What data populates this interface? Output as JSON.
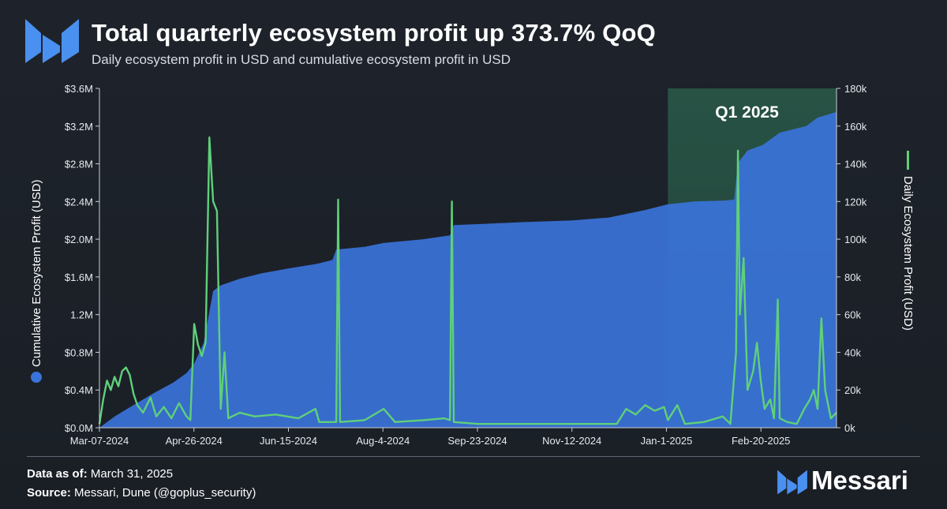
{
  "header": {
    "title": "Total quarterly ecosystem profit up 373.7% QoQ",
    "subtitle": "Daily ecosystem profit in USD and cumulative ecosystem profit in USD"
  },
  "footer": {
    "data_as_of_label": "Data as of:",
    "data_as_of_value": "March 31, 2025",
    "source_label": "Source:",
    "source_value": "Messari, Dune (@goplus_security)",
    "brand": "Messari"
  },
  "colors": {
    "background": "#1c2128",
    "cumulative_area": "#3a73d9",
    "daily_line": "#5fd07a",
    "highlight": "#2f7a5a",
    "brand_blue": "#4a90f0"
  },
  "chart_data": {
    "type": "area",
    "x_ticks": [
      "Mar-07-2024",
      "Apr-26-2024",
      "Jun-15-2024",
      "Aug-4-2024",
      "Sep-23-2024",
      "Nov-12-2024",
      "Jan-1-2025",
      "Feb-20-2025"
    ],
    "x_range": [
      "2024-03-07",
      "2025-03-31"
    ],
    "y_left": {
      "label": "Cumulative Ecosystem Profit (USD)",
      "ticks": [
        "$0.0M",
        "$0.4M",
        "$0.8M",
        "1.2M",
        "$1.6M",
        "$2.0M",
        "$2.4M",
        "$2.8M",
        "$3.2M",
        "$3.6M"
      ],
      "range": [
        0,
        3600000
      ]
    },
    "y_right": {
      "label": "Daily Ecosystem Profit (USD)",
      "ticks": [
        "0k",
        "20k",
        "40k",
        "60k",
        "80k",
        "100k",
        "120k",
        "140k",
        "160k",
        "180k"
      ],
      "range": [
        0,
        180000
      ]
    },
    "highlight": {
      "label": "Q1 2025",
      "start": "2025-01-01",
      "end": "2025-03-31"
    },
    "legend_placement": "beside axis titles",
    "grid": false,
    "series": [
      {
        "name": "Cumulative Ecosystem Profit (USD)",
        "axis": "left",
        "kind": "area",
        "points": [
          [
            "2024-03-07",
            0
          ],
          [
            "2024-03-15",
            120000
          ],
          [
            "2024-03-25",
            240000
          ],
          [
            "2024-04-05",
            370000
          ],
          [
            "2024-04-15",
            480000
          ],
          [
            "2024-04-22",
            580000
          ],
          [
            "2024-04-26",
            680000
          ],
          [
            "2024-05-01",
            900000
          ],
          [
            "2024-05-06",
            1450000
          ],
          [
            "2024-05-10",
            1510000
          ],
          [
            "2024-05-20",
            1580000
          ],
          [
            "2024-06-01",
            1640000
          ],
          [
            "2024-06-15",
            1690000
          ],
          [
            "2024-06-30",
            1740000
          ],
          [
            "2024-07-08",
            1780000
          ],
          [
            "2024-07-10",
            1890000
          ],
          [
            "2024-07-25",
            1920000
          ],
          [
            "2024-08-04",
            1960000
          ],
          [
            "2024-08-25",
            2000000
          ],
          [
            "2024-09-08",
            2040000
          ],
          [
            "2024-09-10",
            2150000
          ],
          [
            "2024-09-23",
            2160000
          ],
          [
            "2024-10-15",
            2180000
          ],
          [
            "2024-11-12",
            2200000
          ],
          [
            "2024-12-01",
            2230000
          ],
          [
            "2024-12-20",
            2310000
          ],
          [
            "2025-01-01",
            2370000
          ],
          [
            "2025-01-15",
            2400000
          ],
          [
            "2025-01-31",
            2410000
          ],
          [
            "2025-02-05",
            2420000
          ],
          [
            "2025-02-07",
            2810000
          ],
          [
            "2025-02-12",
            2940000
          ],
          [
            "2025-02-20",
            3000000
          ],
          [
            "2025-03-01",
            3130000
          ],
          [
            "2025-03-15",
            3200000
          ],
          [
            "2025-03-21",
            3290000
          ],
          [
            "2025-03-31",
            3350000
          ]
        ]
      },
      {
        "name": "Daily Ecosystem Profit (USD)",
        "axis": "right",
        "kind": "line",
        "points": [
          [
            "2024-03-07",
            2000
          ],
          [
            "2024-03-09",
            15000
          ],
          [
            "2024-03-11",
            25000
          ],
          [
            "2024-03-13",
            20000
          ],
          [
            "2024-03-15",
            27000
          ],
          [
            "2024-03-17",
            22000
          ],
          [
            "2024-03-19",
            30000
          ],
          [
            "2024-03-21",
            32000
          ],
          [
            "2024-03-23",
            28000
          ],
          [
            "2024-03-25",
            18000
          ],
          [
            "2024-03-27",
            12000
          ],
          [
            "2024-03-30",
            8000
          ],
          [
            "2024-04-03",
            16000
          ],
          [
            "2024-04-06",
            6000
          ],
          [
            "2024-04-10",
            11000
          ],
          [
            "2024-04-14",
            5000
          ],
          [
            "2024-04-18",
            13000
          ],
          [
            "2024-04-22",
            6000
          ],
          [
            "2024-04-24",
            4000
          ],
          [
            "2024-04-26",
            55000
          ],
          [
            "2024-04-28",
            44000
          ],
          [
            "2024-04-30",
            38000
          ],
          [
            "2024-05-02",
            45000
          ],
          [
            "2024-05-04",
            154000
          ],
          [
            "2024-05-06",
            120000
          ],
          [
            "2024-05-08",
            115000
          ],
          [
            "2024-05-10",
            10000
          ],
          [
            "2024-05-12",
            40000
          ],
          [
            "2024-05-14",
            5000
          ],
          [
            "2024-05-20",
            8000
          ],
          [
            "2024-05-28",
            6000
          ],
          [
            "2024-06-08",
            7000
          ],
          [
            "2024-06-20",
            5000
          ],
          [
            "2024-06-29",
            10000
          ],
          [
            "2024-07-01",
            3000
          ],
          [
            "2024-07-10",
            3000
          ],
          [
            "2024-07-11",
            121000
          ],
          [
            "2024-07-12",
            3000
          ],
          [
            "2024-07-25",
            4000
          ],
          [
            "2024-08-04",
            10000
          ],
          [
            "2024-08-10",
            3000
          ],
          [
            "2024-08-25",
            4000
          ],
          [
            "2024-09-05",
            5000
          ],
          [
            "2024-09-08",
            4000
          ],
          [
            "2024-09-09",
            120000
          ],
          [
            "2024-09-10",
            3000
          ],
          [
            "2024-09-23",
            2000
          ],
          [
            "2024-10-15",
            2000
          ],
          [
            "2024-11-12",
            2000
          ],
          [
            "2024-12-05",
            2000
          ],
          [
            "2024-12-10",
            10000
          ],
          [
            "2024-12-15",
            7000
          ],
          [
            "2024-12-20",
            12000
          ],
          [
            "2024-12-25",
            9000
          ],
          [
            "2024-12-30",
            11000
          ],
          [
            "2025-01-01",
            4000
          ],
          [
            "2025-01-06",
            12000
          ],
          [
            "2025-01-10",
            2000
          ],
          [
            "2025-01-20",
            3000
          ],
          [
            "2025-01-30",
            6000
          ],
          [
            "2025-02-03",
            2000
          ],
          [
            "2025-02-06",
            40000
          ],
          [
            "2025-02-07",
            147000
          ],
          [
            "2025-02-08",
            60000
          ],
          [
            "2025-02-10",
            90000
          ],
          [
            "2025-02-12",
            20000
          ],
          [
            "2025-02-15",
            30000
          ],
          [
            "2025-02-17",
            45000
          ],
          [
            "2025-02-19",
            25000
          ],
          [
            "2025-02-21",
            10000
          ],
          [
            "2025-02-24",
            15000
          ],
          [
            "2025-02-26",
            5000
          ],
          [
            "2025-02-28",
            68000
          ],
          [
            "2025-03-01",
            5000
          ],
          [
            "2025-03-05",
            3000
          ],
          [
            "2025-03-10",
            2000
          ],
          [
            "2025-03-14",
            10000
          ],
          [
            "2025-03-17",
            15000
          ],
          [
            "2025-03-19",
            20000
          ],
          [
            "2025-03-21",
            10000
          ],
          [
            "2025-03-23",
            58000
          ],
          [
            "2025-03-25",
            20000
          ],
          [
            "2025-03-28",
            5000
          ],
          [
            "2025-03-31",
            8000
          ]
        ]
      }
    ]
  }
}
